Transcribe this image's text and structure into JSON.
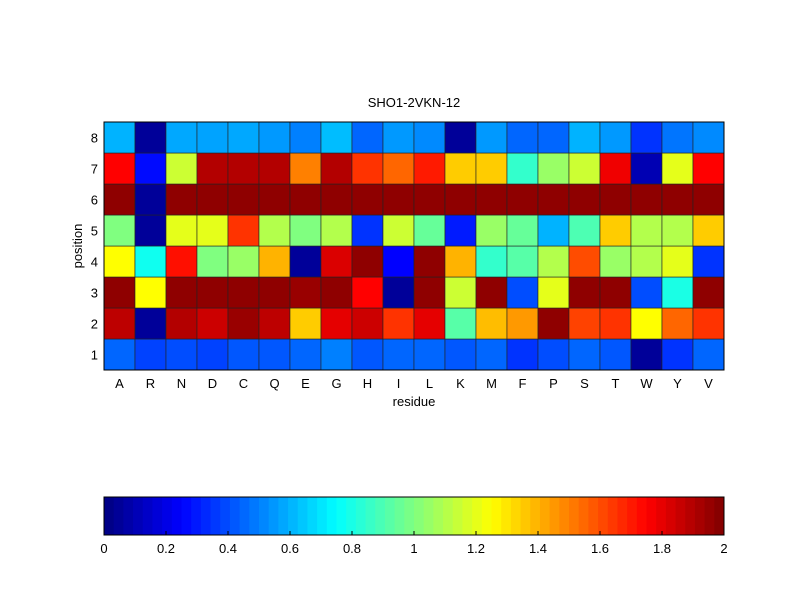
{
  "chart_data": {
    "type": "heatmap",
    "title": "SHO1-2VKN-12",
    "xlabel": "residue",
    "ylabel": "position",
    "x_categories": [
      "A",
      "R",
      "N",
      "D",
      "C",
      "Q",
      "E",
      "G",
      "H",
      "I",
      "L",
      "K",
      "M",
      "F",
      "P",
      "S",
      "T",
      "W",
      "Y",
      "V"
    ],
    "y_categories": [
      "1",
      "2",
      "3",
      "4",
      "5",
      "6",
      "7",
      "8"
    ],
    "colormap": "jet",
    "clim": [
      0,
      2
    ],
    "colorbar_ticks": [
      "0",
      "0.2",
      "0.4",
      "0.6",
      "0.8",
      "1",
      "1.2",
      "1.4",
      "1.6",
      "1.8",
      "2"
    ],
    "colorbar_placement": "bottom",
    "values_by_position": {
      "8": [
        0.6,
        0.05,
        0.58,
        0.57,
        0.58,
        0.55,
        0.5,
        0.62,
        0.45,
        0.55,
        0.52,
        0.05,
        0.55,
        0.45,
        0.45,
        0.6,
        0.55,
        0.35,
        0.48,
        0.52
      ],
      "7": [
        1.75,
        0.27,
        1.15,
        1.9,
        1.9,
        1.9,
        1.5,
        1.9,
        1.65,
        1.55,
        1.7,
        1.35,
        1.35,
        0.85,
        1.05,
        1.15,
        1.78,
        0.1,
        1.2,
        1.75
      ],
      "6": [
        1.97,
        0.05,
        1.97,
        1.97,
        1.97,
        1.97,
        1.97,
        1.97,
        1.97,
        1.97,
        1.97,
        1.97,
        1.97,
        1.97,
        1.97,
        1.97,
        1.97,
        1.97,
        1.97,
        1.97
      ],
      "5": [
        1.0,
        0.05,
        1.2,
        1.2,
        1.65,
        1.1,
        1.0,
        1.1,
        0.35,
        1.15,
        0.95,
        0.3,
        1.05,
        0.95,
        0.6,
        0.9,
        1.35,
        1.1,
        1.1,
        1.35
      ],
      "4": [
        1.25,
        0.78,
        1.72,
        1.0,
        1.05,
        1.4,
        0.05,
        1.82,
        1.97,
        0.25,
        1.97,
        1.4,
        0.85,
        0.92,
        1.1,
        1.6,
        1.05,
        1.1,
        1.2,
        0.35
      ],
      "3": [
        1.97,
        1.25,
        1.97,
        1.97,
        1.97,
        1.97,
        1.95,
        1.97,
        1.75,
        0.05,
        1.97,
        1.15,
        1.97,
        0.4,
        1.2,
        1.97,
        1.97,
        0.4,
        0.8,
        1.97
      ],
      "2": [
        1.88,
        0.05,
        1.9,
        1.85,
        1.95,
        1.88,
        1.35,
        1.8,
        1.85,
        1.65,
        1.8,
        0.92,
        1.38,
        1.45,
        1.97,
        1.62,
        1.65,
        1.25,
        1.55,
        1.65
      ],
      "1": [
        0.45,
        0.38,
        0.4,
        0.38,
        0.42,
        0.42,
        0.45,
        0.5,
        0.42,
        0.45,
        0.45,
        0.42,
        0.45,
        0.35,
        0.4,
        0.45,
        0.42,
        0.05,
        0.35,
        0.45
      ]
    }
  }
}
